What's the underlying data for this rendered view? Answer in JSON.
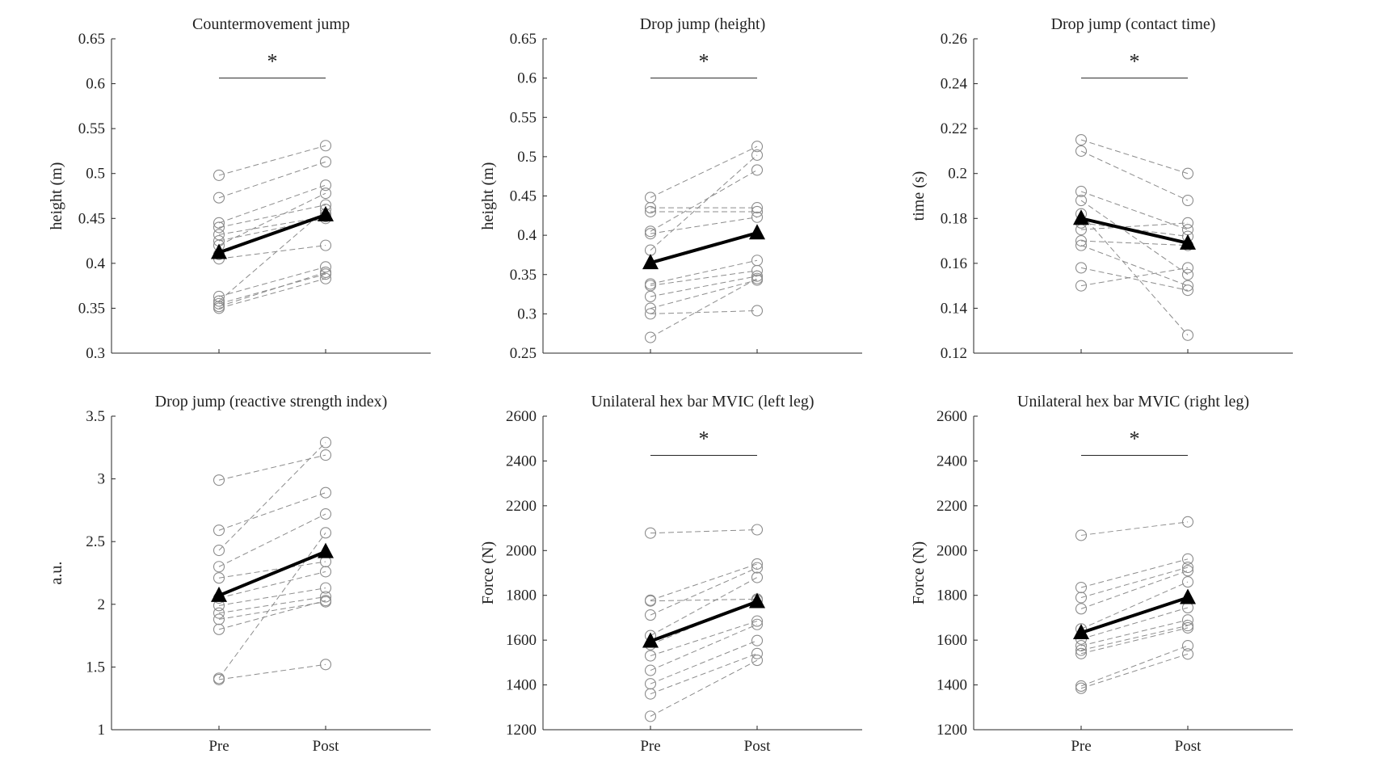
{
  "chart_data": [
    {
      "type": "line",
      "title": "Countermovement jump",
      "ylabel": "height (m)",
      "categories": [
        "Pre",
        "Post"
      ],
      "ylim": [
        0.3,
        0.65
      ],
      "yticks": [
        0.3,
        0.35,
        0.4,
        0.45,
        0.5,
        0.55,
        0.6,
        0.65
      ],
      "show_xtick_labels": false,
      "significance": "*",
      "individuals": [
        [
          0.498,
          0.531
        ],
        [
          0.473,
          0.513
        ],
        [
          0.445,
          0.487
        ],
        [
          0.44,
          0.465
        ],
        [
          0.432,
          0.452
        ],
        [
          0.425,
          0.45
        ],
        [
          0.42,
          0.478
        ],
        [
          0.41,
          0.455
        ],
        [
          0.405,
          0.42
        ],
        [
          0.363,
          0.396
        ],
        [
          0.355,
          0.388
        ],
        [
          0.352,
          0.39
        ],
        [
          0.35,
          0.383
        ],
        [
          0.358,
          0.46
        ]
      ],
      "mean": [
        0.412,
        0.454
      ]
    },
    {
      "type": "line",
      "title": "Drop jump (height)",
      "ylabel": "height (m)",
      "categories": [
        "Pre",
        "Post"
      ],
      "ylim": [
        0.25,
        0.65
      ],
      "yticks": [
        0.25,
        0.3,
        0.35,
        0.4,
        0.45,
        0.5,
        0.55,
        0.6,
        0.65
      ],
      "show_xtick_labels": false,
      "significance": "*",
      "individuals": [
        [
          0.448,
          0.513
        ],
        [
          0.435,
          0.435
        ],
        [
          0.43,
          0.43
        ],
        [
          0.405,
          0.483
        ],
        [
          0.402,
          0.423
        ],
        [
          0.381,
          0.502
        ],
        [
          0.338,
          0.368
        ],
        [
          0.336,
          0.355
        ],
        [
          0.322,
          0.348
        ],
        [
          0.307,
          0.343
        ],
        [
          0.3,
          0.304
        ],
        [
          0.27,
          0.345
        ]
      ],
      "mean": [
        0.365,
        0.403
      ]
    },
    {
      "type": "line",
      "title": "Drop jump (contact time)",
      "ylabel": "time (s)",
      "categories": [
        "Pre",
        "Post"
      ],
      "ylim": [
        0.12,
        0.26
      ],
      "yticks": [
        0.12,
        0.14,
        0.16,
        0.18,
        0.2,
        0.22,
        0.24,
        0.26
      ],
      "show_xtick_labels": false,
      "significance": "*",
      "individuals": [
        [
          0.215,
          0.2
        ],
        [
          0.21,
          0.188
        ],
        [
          0.192,
          0.175
        ],
        [
          0.188,
          0.155
        ],
        [
          0.182,
          0.128
        ],
        [
          0.178,
          0.172
        ],
        [
          0.175,
          0.178
        ],
        [
          0.17,
          0.168
        ],
        [
          0.168,
          0.15
        ],
        [
          0.158,
          0.148
        ],
        [
          0.15,
          0.158
        ]
      ],
      "mean": [
        0.18,
        0.169
      ]
    },
    {
      "type": "line",
      "title": "Drop jump (reactive strength index)",
      "ylabel": "a.u.",
      "categories": [
        "Pre",
        "Post"
      ],
      "ylim": [
        1,
        3.5
      ],
      "yticks": [
        1,
        1.5,
        2,
        2.5,
        3,
        3.5
      ],
      "show_xtick_labels": true,
      "significance": "",
      "individuals": [
        [
          2.99,
          3.19
        ],
        [
          2.59,
          2.89
        ],
        [
          2.43,
          3.29
        ],
        [
          2.3,
          2.72
        ],
        [
          2.21,
          2.34
        ],
        [
          2.05,
          2.26
        ],
        [
          1.99,
          2.13
        ],
        [
          1.93,
          2.06
        ],
        [
          1.88,
          2.02
        ],
        [
          1.8,
          2.03
        ],
        [
          1.4,
          1.52
        ],
        [
          1.41,
          2.57
        ]
      ],
      "mean": [
        2.07,
        2.42
      ]
    },
    {
      "type": "line",
      "title": "Unilateral hex bar MVIC (left leg)",
      "ylabel": "Force (N)",
      "categories": [
        "Pre",
        "Post"
      ],
      "ylim": [
        1200,
        2600
      ],
      "yticks": [
        1200,
        1400,
        1600,
        1800,
        2000,
        2200,
        2400,
        2600
      ],
      "show_xtick_labels": true,
      "significance": "*",
      "individuals": [
        [
          2078,
          2093
        ],
        [
          1778,
          1940
        ],
        [
          1775,
          1783
        ],
        [
          1712,
          1923
        ],
        [
          1620,
          1880
        ],
        [
          1580,
          1778
        ],
        [
          1530,
          1685
        ],
        [
          1465,
          1670
        ],
        [
          1405,
          1598
        ],
        [
          1360,
          1540
        ],
        [
          1260,
          1510
        ]
      ],
      "mean": [
        1595,
        1772
      ]
    },
    {
      "type": "line",
      "title": "Unilateral hex bar MVIC (right leg)",
      "ylabel": "Force (N)",
      "categories": [
        "Pre",
        "Post"
      ],
      "ylim": [
        1200,
        2600
      ],
      "yticks": [
        1200,
        1400,
        1600,
        1800,
        2000,
        2200,
        2400,
        2600
      ],
      "show_xtick_labels": true,
      "significance": "*",
      "individuals": [
        [
          2068,
          2128
        ],
        [
          1835,
          1962
        ],
        [
          1790,
          1925
        ],
        [
          1740,
          1910
        ],
        [
          1650,
          1860
        ],
        [
          1605,
          1745
        ],
        [
          1575,
          1690
        ],
        [
          1555,
          1665
        ],
        [
          1540,
          1655
        ],
        [
          1395,
          1575
        ],
        [
          1385,
          1538
        ]
      ],
      "mean": [
        1633,
        1790
      ]
    }
  ]
}
